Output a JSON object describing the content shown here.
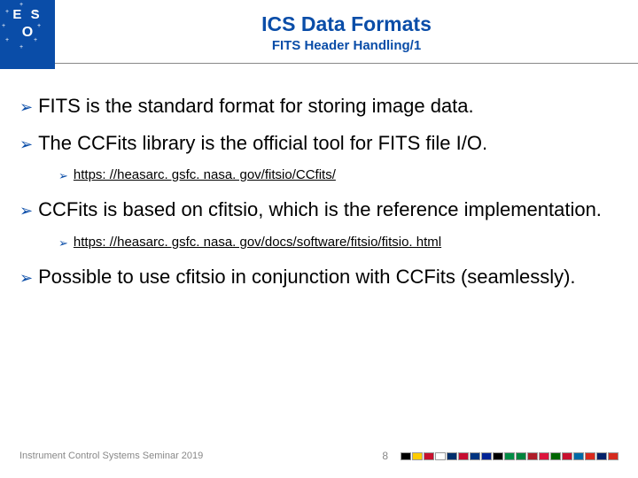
{
  "logo": {
    "top": "E S",
    "bottom": "O"
  },
  "header": {
    "title": "ICS Data Formats",
    "subtitle": "FITS Header Handling/1"
  },
  "bullets": [
    {
      "level": 1,
      "text": "FITS is the standard format for storing image data."
    },
    {
      "level": 1,
      "text": "The CCFits library is the official tool for FITS file I/O."
    },
    {
      "level": 2,
      "text": "https: //heasarc. gsfc. nasa. gov/fitsio/CCfits/",
      "link": true
    },
    {
      "level": 1,
      "text": "CCFits is based on cfitsio, which is the reference implementation."
    },
    {
      "level": 2,
      "text": "https: //heasarc. gsfc. nasa. gov/docs/software/fitsio/fitsio. html",
      "link": true
    },
    {
      "level": 1,
      "text": "Possible to use cfitsio in conjunction with CCFits (seamlessly)."
    }
  ],
  "footer": {
    "text": "Instrument Control Systems Seminar 2019",
    "page": "8"
  },
  "flags": [
    "#000000",
    "#ffcc00",
    "#c8102e",
    "#fff",
    "#002f6c",
    "#c60c30",
    "#003580",
    "#002395",
    "#000000",
    "#008c45",
    "#00843d",
    "#ae1c28",
    "#dc143c",
    "#006600",
    "#c8102e",
    "#006aa7",
    "#da291c",
    "#012169",
    "#d52b1e"
  ],
  "colors": {
    "brand": "#0a4da8",
    "muted": "#888888"
  }
}
